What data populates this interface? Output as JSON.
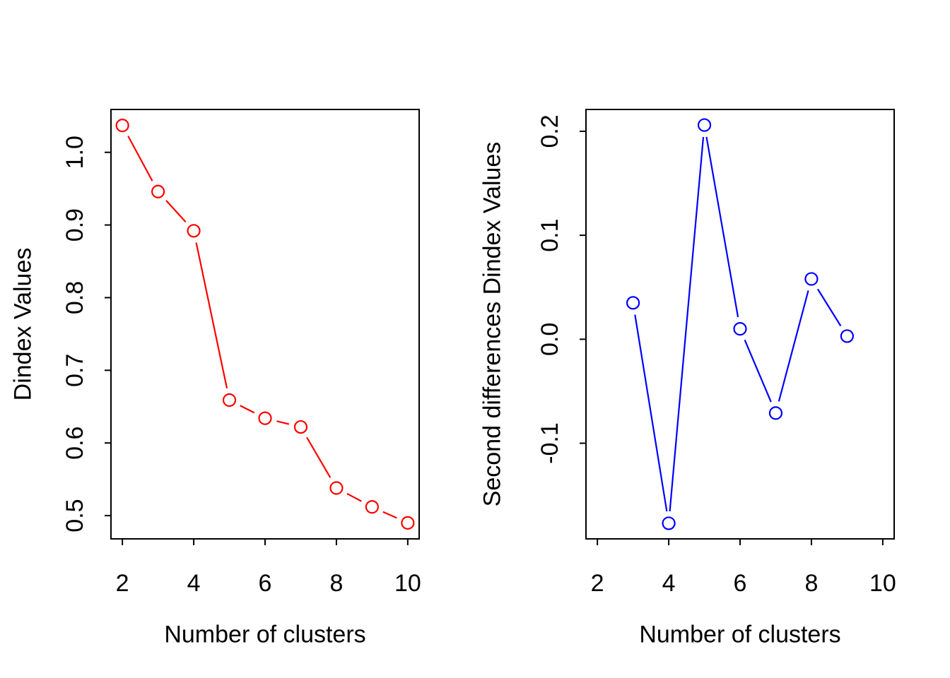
{
  "figure": {
    "background": "#ffffff",
    "axis_color": "#000000"
  },
  "chart_data": [
    {
      "type": "line",
      "series_name": "Dindex",
      "color": "#ff0000",
      "marker": "open-circle",
      "line_style": "solid-with-marker-gaps",
      "xlabel": "Number of clusters",
      "ylabel": "Dindex Values",
      "x": [
        2,
        3,
        4,
        5,
        6,
        7,
        8,
        9,
        10
      ],
      "y": [
        1.037,
        0.946,
        0.892,
        0.659,
        0.634,
        0.622,
        0.538,
        0.512,
        0.49
      ],
      "xlim": [
        1.68,
        10.32
      ],
      "ylim": [
        0.468,
        1.059
      ],
      "grid": false,
      "legend": "none",
      "xticks": {
        "values": [
          2,
          4,
          6,
          8,
          10
        ],
        "labels": [
          "2",
          "4",
          "6",
          "8",
          "10"
        ]
      },
      "yticks": {
        "values": [
          0.5,
          0.6,
          0.7,
          0.8,
          0.9,
          1.0
        ],
        "labels": [
          "0.5",
          "0.6",
          "0.7",
          "0.8",
          "0.9",
          "1.0"
        ]
      }
    },
    {
      "type": "line",
      "series_name": "Second differences Dindex",
      "color": "#0000ff",
      "marker": "open-circle",
      "line_style": "solid-with-marker-gaps",
      "xlabel": "Number of clusters",
      "ylabel": "Second differences Dindex Values",
      "x": [
        3,
        4,
        5,
        6,
        7,
        8,
        9
      ],
      "y": [
        0.035,
        -0.177,
        0.206,
        0.01,
        -0.071,
        0.058,
        0.003
      ],
      "xlim": [
        1.68,
        10.32
      ],
      "ylim": [
        -0.192,
        0.221
      ],
      "grid": false,
      "legend": "none",
      "xticks": {
        "values": [
          2,
          4,
          6,
          8,
          10
        ],
        "labels": [
          "2",
          "4",
          "6",
          "8",
          "10"
        ]
      },
      "yticks": {
        "values": [
          -0.1,
          0.0,
          0.1,
          0.2
        ],
        "labels": [
          "-0.1",
          "0.0",
          "0.1",
          "0.2"
        ]
      }
    }
  ]
}
